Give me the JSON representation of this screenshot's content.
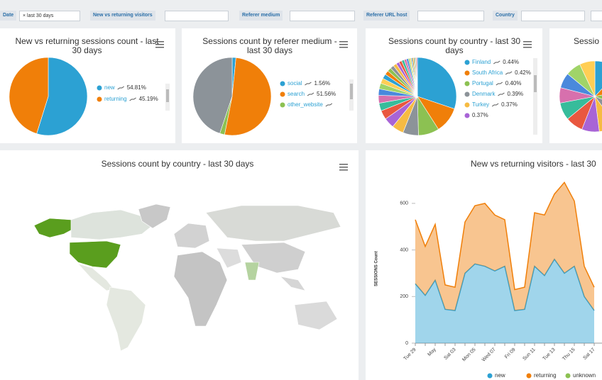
{
  "filters": [
    {
      "label": "Date",
      "value": "last 30 days"
    },
    {
      "label": "New vs returning visitors"
    },
    {
      "label": "Referer medium"
    },
    {
      "label": "Referer URL host"
    },
    {
      "label": "Country"
    }
  ],
  "chart_data": [
    {
      "type": "pie",
      "title": "New vs returning sessions count - last 30 days",
      "categories": [
        "new",
        "returning"
      ],
      "values": [
        54.81,
        45.19
      ],
      "value_labels": [
        "54.81%",
        "45.19%"
      ],
      "colors": [
        "#2ca1d3",
        "#f07f09"
      ]
    },
    {
      "type": "pie",
      "title": "Sessions count by referer medium - last 30 days",
      "categories": [
        "social",
        "search",
        "other_website",
        null
      ],
      "values": [
        1.56,
        51.56,
        2,
        44.88
      ],
      "value_labels": [
        "1.56%",
        "51.56%",
        null,
        null
      ],
      "colors": [
        "#2ca1d3",
        "#f07f09",
        "#8cc152",
        "#8c9399"
      ]
    },
    {
      "type": "pie",
      "title": "Sessions count by country - last 30 days",
      "categories": [
        null,
        null,
        null,
        null,
        null,
        null,
        null,
        null,
        null,
        null,
        null,
        null,
        null,
        null,
        null,
        null,
        null,
        null,
        null,
        null,
        null,
        null,
        null,
        null,
        "Finland",
        "South Africa",
        "Portugal",
        "Denmark",
        "Turkey",
        null
      ],
      "values": [
        28,
        10,
        8,
        6,
        4.5,
        4,
        3.5,
        3,
        3,
        2.5,
        2.2,
        2,
        1.8,
        1.6,
        1.5,
        1.4,
        1.3,
        1.2,
        1.1,
        1,
        0.9,
        0.8,
        0.6,
        0.5,
        0.44,
        0.42,
        0.4,
        0.39,
        0.37,
        0.37
      ],
      "value_labels": [
        null,
        null,
        null,
        null,
        null,
        null,
        null,
        null,
        null,
        null,
        null,
        null,
        null,
        null,
        null,
        null,
        null,
        null,
        null,
        null,
        null,
        null,
        null,
        null,
        "0.44%",
        "0.42%",
        "0.40%",
        "0.39%",
        "0.37%",
        "0.37%"
      ],
      "colors": [
        "#2ca1d3",
        "#f07f09",
        "#8cc152",
        "#8c9399",
        "#f6bb42",
        "#a864d6",
        "#e9573f",
        "#37bc9b",
        "#d770ad",
        "#4a89dc",
        "#a0d468",
        "#ffce54"
      ]
    },
    {
      "type": "pie",
      "title": "Sessio",
      "categories": [
        null,
        null,
        null,
        null,
        null,
        null,
        null,
        null,
        null,
        null,
        null,
        null
      ],
      "values": [
        12,
        10,
        9,
        9,
        8,
        8,
        8,
        8,
        7,
        7,
        7,
        7
      ],
      "colors": [
        "#2ca1d3",
        "#f07f09",
        "#8cc152",
        "#8c9399",
        "#f6bb42",
        "#a864d6",
        "#e9573f",
        "#37bc9b",
        "#d770ad",
        "#4a89dc",
        "#a0d468",
        "#ffce54"
      ]
    },
    {
      "type": "map",
      "title": "Sessions count by country - last 30 days"
    },
    {
      "type": "area",
      "title": "New vs returning visitors - last 30",
      "y_label": "SESSIONS Count",
      "categories": [
        "Tue 29",
        null,
        "May",
        null,
        "Sat 03",
        null,
        "Mon 05",
        null,
        "Wed 07",
        null,
        "Fri 09",
        null,
        "Sun 11",
        null,
        "Tue 13",
        null,
        "Thu 15",
        null,
        "Sat 17"
      ],
      "series": [
        {
          "name": "new",
          "color": "#2ca1d3",
          "values": [
            255,
            205,
            270,
            145,
            140,
            300,
            340,
            330,
            310,
            330,
            140,
            145,
            330,
            290,
            360,
            300,
            330,
            200,
            140
          ]
        },
        {
          "name": "returning",
          "color": "#f07f09",
          "values": [
            275,
            210,
            240,
            105,
            100,
            220,
            250,
            270,
            240,
            200,
            90,
            95,
            230,
            260,
            280,
            390,
            280,
            130,
            100
          ]
        },
        {
          "name": "unknown",
          "color": "#8cc152",
          "values": [
            null,
            null,
            null,
            null,
            null,
            null,
            null,
            null,
            null,
            null,
            null,
            null,
            null,
            null,
            null,
            null,
            null,
            null,
            null
          ]
        }
      ],
      "ylim": [
        0,
        700
      ],
      "yticks": [
        0,
        200,
        400,
        600
      ],
      "stacked": true
    }
  ]
}
